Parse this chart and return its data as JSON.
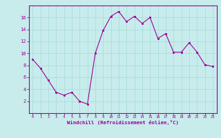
{
  "x": [
    0,
    1,
    2,
    3,
    4,
    5,
    6,
    7,
    8,
    9,
    10,
    11,
    12,
    13,
    14,
    15,
    16,
    17,
    18,
    19,
    20,
    21,
    22,
    23
  ],
  "y": [
    9.0,
    7.5,
    5.5,
    3.5,
    3.0,
    3.5,
    2.0,
    1.5,
    10.0,
    13.8,
    16.2,
    17.0,
    15.3,
    16.2,
    15.0,
    16.0,
    12.5,
    13.3,
    10.2,
    10.2,
    11.8,
    10.2,
    8.1,
    7.8
  ],
  "line_color": "#990099",
  "marker_color": "#990099",
  "bg_color": "#c8ecec",
  "grid_color": "#aadddd",
  "axis_label_color": "#990099",
  "tick_color": "#990099",
  "border_color": "#990099",
  "xlabel": "Windchill (Refroidissement éolien,°C)",
  "xlim": [
    -0.5,
    23.5
  ],
  "ylim": [
    0,
    18
  ],
  "yticks": [
    2,
    4,
    6,
    8,
    10,
    12,
    14,
    16
  ],
  "xticks": [
    0,
    1,
    2,
    3,
    4,
    5,
    6,
    7,
    8,
    9,
    10,
    11,
    12,
    13,
    14,
    15,
    16,
    17,
    18,
    19,
    20,
    21,
    22,
    23
  ],
  "figsize": [
    3.2,
    2.0
  ],
  "dpi": 100
}
